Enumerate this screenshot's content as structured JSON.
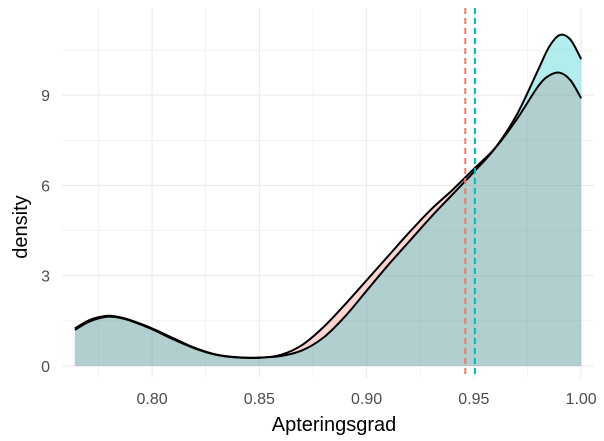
{
  "chart_data": {
    "type": "area",
    "title": "",
    "xlabel": "Apteringsgrad",
    "ylabel": "density",
    "xlim": [
      0.758,
      1.006
    ],
    "ylim": [
      -0.4,
      11.9
    ],
    "x_ticks": [
      0.8,
      0.85,
      0.9,
      0.95,
      1.0
    ],
    "x_tick_labels": [
      "0.80",
      "0.85",
      "0.90",
      "0.95",
      "1.00"
    ],
    "y_ticks": [
      0,
      3,
      6,
      9
    ],
    "y_tick_labels": [
      "0",
      "3",
      "6",
      "9"
    ],
    "grid": true,
    "legend": "none",
    "series": [
      {
        "color": "#f8766d",
        "fill": "#f8766d",
        "mean": 0.946,
        "x": [
          0.764,
          0.77,
          0.775,
          0.78,
          0.785,
          0.79,
          0.8,
          0.81,
          0.82,
          0.83,
          0.84,
          0.85,
          0.86,
          0.87,
          0.88,
          0.89,
          0.9,
          0.91,
          0.92,
          0.93,
          0.94,
          0.95,
          0.96,
          0.97,
          0.98,
          0.985,
          0.99,
          0.995,
          1.0
        ],
        "y": [
          1.25,
          1.5,
          1.62,
          1.67,
          1.62,
          1.52,
          1.25,
          0.92,
          0.6,
          0.38,
          0.29,
          0.27,
          0.37,
          0.7,
          1.3,
          2.05,
          2.85,
          3.65,
          4.45,
          5.2,
          5.85,
          6.55,
          7.25,
          8.2,
          9.3,
          9.65,
          9.75,
          9.5,
          8.9
        ]
      },
      {
        "color": "#00bfc4",
        "fill": "#00bfc4",
        "mean": 0.9505,
        "x": [
          0.764,
          0.77,
          0.775,
          0.78,
          0.785,
          0.79,
          0.8,
          0.81,
          0.82,
          0.83,
          0.84,
          0.85,
          0.86,
          0.87,
          0.88,
          0.89,
          0.9,
          0.91,
          0.92,
          0.93,
          0.94,
          0.95,
          0.96,
          0.97,
          0.98,
          0.985,
          0.99,
          0.995,
          1.0
        ],
        "y": [
          1.2,
          1.45,
          1.58,
          1.64,
          1.6,
          1.5,
          1.22,
          0.88,
          0.58,
          0.37,
          0.28,
          0.28,
          0.33,
          0.52,
          0.95,
          1.65,
          2.5,
          3.35,
          4.15,
          4.95,
          5.7,
          6.45,
          7.25,
          8.35,
          9.85,
          10.6,
          11.0,
          10.85,
          10.2
        ]
      }
    ]
  }
}
